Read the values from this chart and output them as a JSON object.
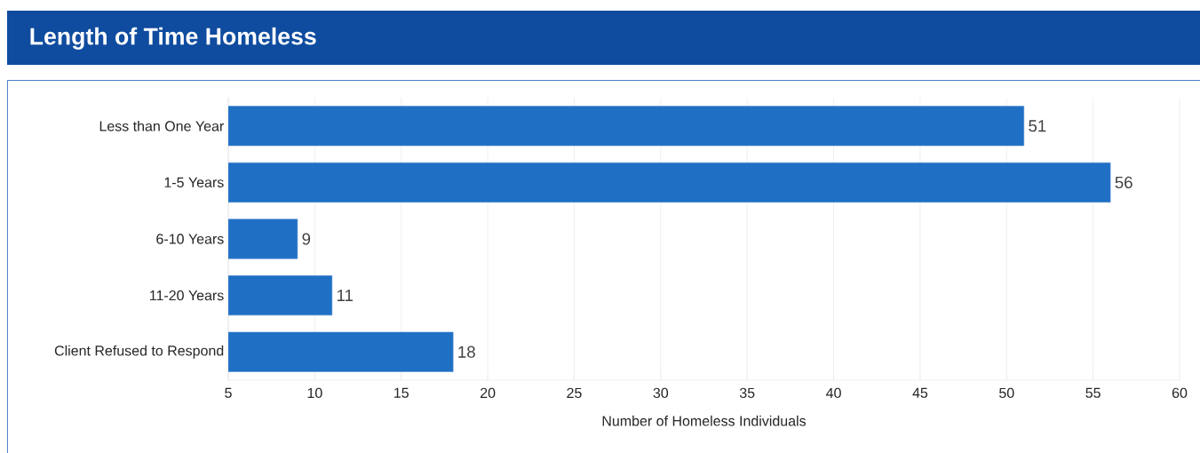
{
  "chart_data": {
    "type": "bar",
    "orientation": "horizontal",
    "title": "Length of Time Homeless",
    "xlabel": "Number of Homeless Individuals",
    "categories": [
      "Less than One Year",
      "1-5 Years",
      "6-10 Years",
      "11-20 Years",
      "Client Refused to Respond"
    ],
    "values": [
      51,
      56,
      9,
      11,
      18
    ],
    "color": "#1f6fc5",
    "xlim": [
      5,
      60
    ],
    "xticks": [
      5,
      10,
      15,
      20,
      25,
      30,
      35,
      40,
      45,
      50,
      55,
      60
    ],
    "grid": "x",
    "data_labels": true
  }
}
